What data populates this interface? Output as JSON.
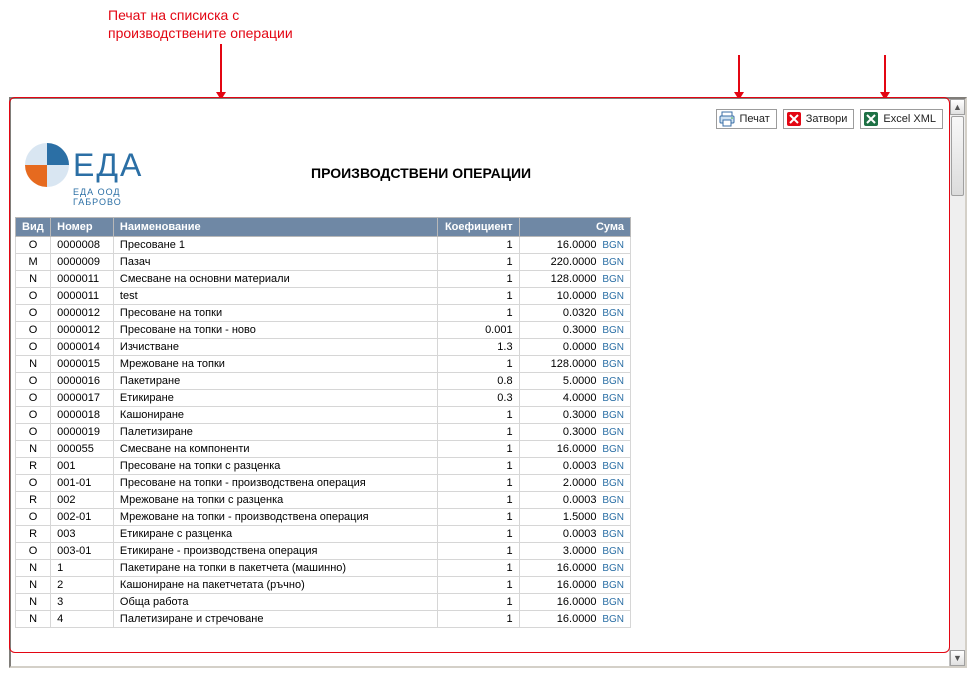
{
  "annotation": {
    "line1": "Печат на списиска с",
    "line2": "производствените операции",
    "color": "#e30613"
  },
  "toolbar": {
    "print": "Печат",
    "close": "Затвори",
    "excel": "Excel XML"
  },
  "logo": {
    "brand": "ЕДА",
    "subtitle": "ЕДА ООД ГАБРОВО"
  },
  "title": "ПРОИЗВОДСТВЕНИ ОПЕРАЦИИ",
  "currency": "BGN",
  "columns": {
    "vid": "Вид",
    "nomer": "Номер",
    "name": "Наименование",
    "coef": "Коефициент",
    "sum": "Сума"
  },
  "header_bg": "#6f88a5",
  "rows": [
    {
      "vid": "O",
      "nom": "0000008",
      "name": "Пресоване 1",
      "coef": "1",
      "sum": "16.0000"
    },
    {
      "vid": "M",
      "nom": "0000009",
      "name": "Пазач",
      "coef": "1",
      "sum": "220.0000"
    },
    {
      "vid": "N",
      "nom": "0000011",
      "name": "Смесване на основни материали",
      "coef": "1",
      "sum": "128.0000"
    },
    {
      "vid": "O",
      "nom": "0000011",
      "name": "test",
      "coef": "1",
      "sum": "10.0000"
    },
    {
      "vid": "O",
      "nom": "0000012",
      "name": "Пресоване на топки",
      "coef": "1",
      "sum": "0.0320"
    },
    {
      "vid": "O",
      "nom": "0000012",
      "name": "Пресоване на топки - ново",
      "coef": "0.001",
      "sum": "0.3000"
    },
    {
      "vid": "O",
      "nom": "0000014",
      "name": "Изчистване",
      "coef": "1.3",
      "sum": "0.0000"
    },
    {
      "vid": "N",
      "nom": "0000015",
      "name": "Мрежоване на топки",
      "coef": "1",
      "sum": "128.0000"
    },
    {
      "vid": "O",
      "nom": "0000016",
      "name": "Пакетиране",
      "coef": "0.8",
      "sum": "5.0000"
    },
    {
      "vid": "O",
      "nom": "0000017",
      "name": "Етикиране",
      "coef": "0.3",
      "sum": "4.0000"
    },
    {
      "vid": "O",
      "nom": "0000018",
      "name": "Кашониране",
      "coef": "1",
      "sum": "0.3000"
    },
    {
      "vid": "O",
      "nom": "0000019",
      "name": "Палетизиране",
      "coef": "1",
      "sum": "0.3000"
    },
    {
      "vid": "N",
      "nom": "000055",
      "name": "Смесване на компоненти",
      "coef": "1",
      "sum": "16.0000"
    },
    {
      "vid": "R",
      "nom": "001",
      "name": "Пресоване на топки с разценка",
      "coef": "1",
      "sum": "0.0003"
    },
    {
      "vid": "O",
      "nom": "001-01",
      "name": "Пресоване на топки - производствена операция",
      "coef": "1",
      "sum": "2.0000"
    },
    {
      "vid": "R",
      "nom": "002",
      "name": "Мрежоване на топки с разценка",
      "coef": "1",
      "sum": "0.0003"
    },
    {
      "vid": "O",
      "nom": "002-01",
      "name": "Мрежоване на топки - производствена операция",
      "coef": "1",
      "sum": "1.5000"
    },
    {
      "vid": "R",
      "nom": "003",
      "name": "Етикиране с разценка",
      "coef": "1",
      "sum": "0.0003"
    },
    {
      "vid": "O",
      "nom": "003-01",
      "name": "Етикиране - производствена операция",
      "coef": "1",
      "sum": "3.0000"
    },
    {
      "vid": "N",
      "nom": "1",
      "name": "Пакетиране на топки в пакетчета (машинно)",
      "coef": "1",
      "sum": "16.0000"
    },
    {
      "vid": "N",
      "nom": "2",
      "name": "Кашониране на пакетчетата (ръчно)",
      "coef": "1",
      "sum": "16.0000"
    },
    {
      "vid": "N",
      "nom": "3",
      "name": "Обща работа",
      "coef": "1",
      "sum": "16.0000"
    },
    {
      "vid": "N",
      "nom": "4",
      "name": "Палетизиране и стречоване",
      "coef": "1",
      "sum": "16.0000"
    }
  ]
}
